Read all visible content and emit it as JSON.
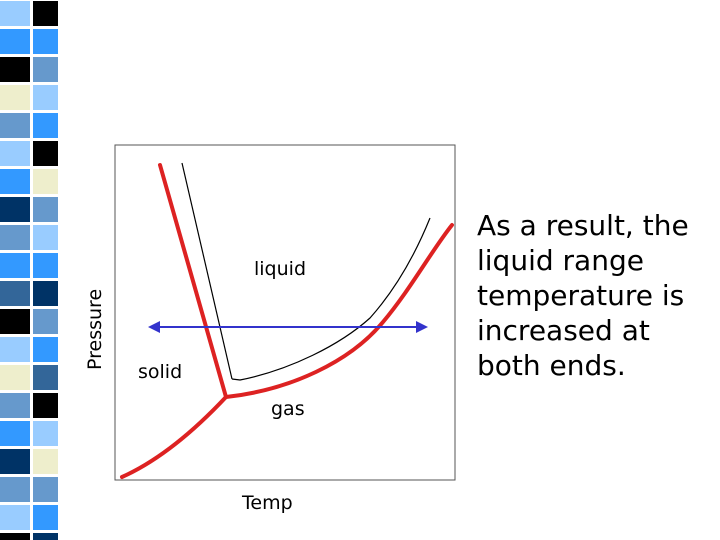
{
  "decor": {
    "palette": [
      "#000000",
      "#3399ff",
      "#6699cc",
      "#99ccff",
      "#003366",
      "#eeeecc",
      "#336699"
    ],
    "pattern": [
      0,
      1,
      2,
      3,
      1,
      0,
      5,
      2,
      3,
      1,
      4,
      2,
      1,
      6,
      0,
      3,
      5,
      2,
      1,
      4,
      2,
      3,
      0,
      1,
      5,
      2,
      3,
      4,
      1,
      0,
      2,
      5,
      3,
      1,
      6,
      2,
      0,
      4,
      3,
      1
    ]
  },
  "diagram": {
    "type": "phase-diagram",
    "axes": {
      "x_label": "Temp",
      "y_label": "Pressure"
    },
    "regions": {
      "liquid": "liquid",
      "solid": "solid",
      "gas": "gas"
    },
    "colors": {
      "shifted_curves": "#dd2222",
      "original_curves": "#000000",
      "arrow": "#3333cc",
      "frame": "#555555"
    }
  },
  "caption": {
    "lines": [
      "As a result, the",
      "liquid range",
      "temperature is",
      "increased at",
      "both ends."
    ]
  }
}
